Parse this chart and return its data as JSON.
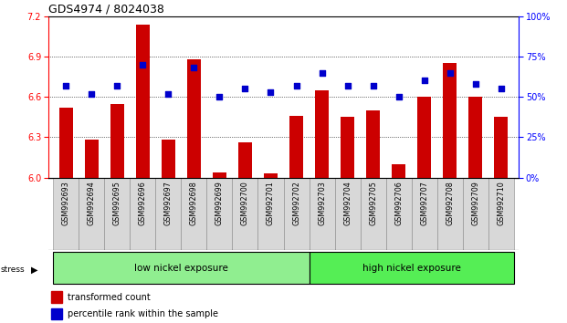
{
  "title": "GDS4974 / 8024038",
  "samples": [
    "GSM992693",
    "GSM992694",
    "GSM992695",
    "GSM992696",
    "GSM992697",
    "GSM992698",
    "GSM992699",
    "GSM992700",
    "GSM992701",
    "GSM992702",
    "GSM992703",
    "GSM992704",
    "GSM992705",
    "GSM992706",
    "GSM992707",
    "GSM992708",
    "GSM992709",
    "GSM992710"
  ],
  "bar_values": [
    6.52,
    6.28,
    6.55,
    7.14,
    6.28,
    6.88,
    6.04,
    6.26,
    6.03,
    6.46,
    6.65,
    6.45,
    6.5,
    6.1,
    6.6,
    6.85,
    6.6,
    6.45
  ],
  "dot_values": [
    57,
    52,
    57,
    70,
    52,
    68,
    50,
    55,
    53,
    57,
    65,
    57,
    57,
    50,
    60,
    65,
    58,
    55
  ],
  "ylim_left": [
    6.0,
    7.2
  ],
  "ylim_right": [
    0,
    100
  ],
  "yticks_left": [
    6.0,
    6.3,
    6.6,
    6.9,
    7.2
  ],
  "yticks_right": [
    0,
    25,
    50,
    75,
    100
  ],
  "ytick_labels_right": [
    "0%",
    "25%",
    "50%",
    "75%",
    "100%"
  ],
  "bar_color": "#CC0000",
  "dot_color": "#0000CC",
  "low_nickel_count": 10,
  "high_nickel_count": 8,
  "low_label": "low nickel exposure",
  "high_label": "high nickel exposure",
  "stress_label": "stress",
  "legend_bar": "transformed count",
  "legend_dot": "percentile rank within the sample",
  "bg_color_low": "#90EE90",
  "bg_color_high": "#55EE55",
  "plot_bg": "#FFFFFF",
  "bar_width": 0.55,
  "title_fontsize": 9,
  "tick_fontsize": 7,
  "label_fontsize": 5.8,
  "band_fontsize": 7.5
}
